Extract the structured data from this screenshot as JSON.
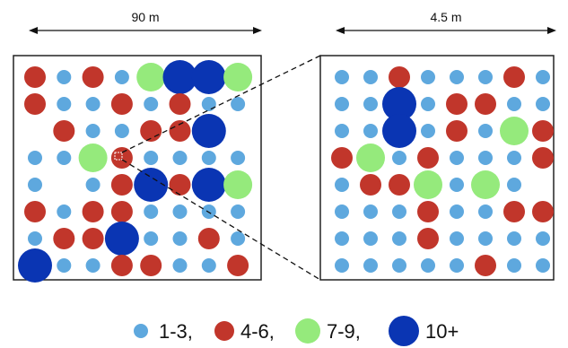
{
  "scale_left": {
    "label": "90 m"
  },
  "scale_right": {
    "label": "4.5 m"
  },
  "colors": {
    "c1": "#5ea8de",
    "c2": "#c1362b",
    "c3": "#95ea7c",
    "c4": "#0a35b3",
    "frame": "#222222"
  },
  "legend": [
    {
      "class": "c1",
      "label": "1-3,"
    },
    {
      "class": "c2",
      "label": "4-6,"
    },
    {
      "class": "c3",
      "label": "7-9,"
    },
    {
      "class": "c4",
      "label": "10+"
    }
  ],
  "left_grid": [
    [
      2,
      1,
      2,
      1,
      3,
      4,
      4,
      3
    ],
    [
      2,
      1,
      1,
      2,
      1,
      2,
      1,
      1
    ],
    [
      0,
      2,
      1,
      1,
      2,
      2,
      4,
      0
    ],
    [
      1,
      1,
      3,
      2,
      1,
      1,
      1,
      1
    ],
    [
      1,
      0,
      1,
      2,
      4,
      2,
      4,
      3
    ],
    [
      2,
      1,
      2,
      2,
      1,
      1,
      1,
      1
    ],
    [
      1,
      2,
      2,
      4,
      1,
      1,
      2,
      1
    ],
    [
      4,
      1,
      1,
      2,
      2,
      1,
      1,
      2
    ]
  ],
  "right_grid": [
    [
      1,
      1,
      2,
      1,
      1,
      1,
      2,
      1
    ],
    [
      1,
      1,
      4,
      1,
      2,
      2,
      1,
      1
    ],
    [
      1,
      1,
      4,
      1,
      2,
      1,
      3,
      2
    ],
    [
      2,
      3,
      1,
      2,
      1,
      1,
      1,
      2
    ],
    [
      1,
      2,
      2,
      3,
      1,
      3,
      1,
      0
    ],
    [
      1,
      1,
      1,
      2,
      1,
      1,
      2,
      2
    ],
    [
      1,
      1,
      1,
      2,
      1,
      1,
      1,
      1
    ],
    [
      1,
      1,
      1,
      1,
      1,
      2,
      1,
      1
    ]
  ]
}
